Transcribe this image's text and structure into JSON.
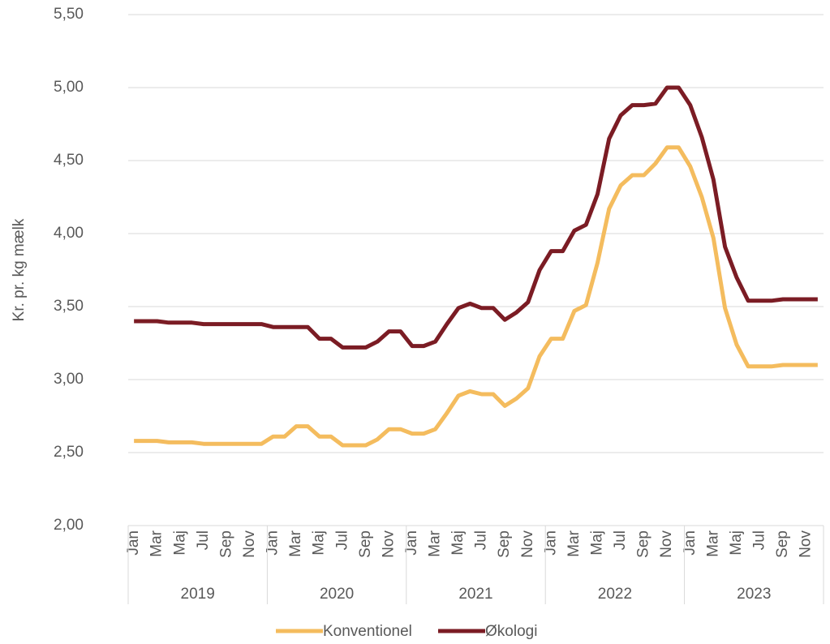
{
  "chart_data": {
    "type": "line",
    "y_label": "Kr. pr. kg mælk",
    "categories": [
      "Jan",
      null,
      "Mar",
      null,
      "Maj",
      null,
      "Jul",
      null,
      "Sep",
      null,
      "Nov",
      null,
      "Jan",
      null,
      "Mar",
      null,
      "Maj",
      null,
      "Jul",
      null,
      "Sep",
      null,
      "Nov",
      null,
      "Jan",
      null,
      "Mar",
      null,
      "Maj",
      null,
      "Jul",
      null,
      "Sep",
      null,
      "Nov",
      null,
      "Jan",
      null,
      "Mar",
      null,
      "Maj",
      null,
      "Jul",
      null,
      "Sep",
      null,
      "Nov",
      null,
      "Jan",
      null,
      "Mar",
      null,
      "Maj",
      null,
      "Jul",
      null,
      "Sep",
      null,
      "Nov",
      null
    ],
    "years": [
      "2019",
      "2020",
      "2021",
      "2022",
      "2023"
    ],
    "series": [
      {
        "name": "Konventionel",
        "color": "#f4bc5e",
        "values": [
          2.58,
          2.58,
          2.58,
          2.57,
          2.57,
          2.57,
          2.56,
          2.56,
          2.56,
          2.56,
          2.56,
          2.56,
          2.61,
          2.61,
          2.68,
          2.68,
          2.61,
          2.61,
          2.55,
          2.55,
          2.55,
          2.59,
          2.66,
          2.66,
          2.63,
          2.63,
          2.66,
          2.77,
          2.89,
          2.92,
          2.9,
          2.9,
          2.82,
          2.87,
          2.94,
          3.16,
          3.28,
          3.28,
          3.47,
          3.51,
          3.8,
          4.17,
          4.33,
          4.4,
          4.4,
          4.48,
          4.59,
          4.59,
          4.46,
          4.25,
          3.97,
          3.49,
          3.24,
          3.09,
          3.09,
          3.09,
          3.1,
          3.1,
          3.1,
          3.1
        ]
      },
      {
        "name": "Økologi",
        "color": "#7b1c24",
        "values": [
          3.4,
          3.4,
          3.4,
          3.39,
          3.39,
          3.39,
          3.38,
          3.38,
          3.38,
          3.38,
          3.38,
          3.38,
          3.36,
          3.36,
          3.36,
          3.36,
          3.28,
          3.28,
          3.22,
          3.22,
          3.22,
          3.26,
          3.33,
          3.33,
          3.23,
          3.23,
          3.26,
          3.38,
          3.49,
          3.52,
          3.49,
          3.49,
          3.41,
          3.46,
          3.53,
          3.75,
          3.88,
          3.88,
          4.02,
          4.06,
          4.27,
          4.65,
          4.81,
          4.88,
          4.88,
          4.89,
          5.0,
          5.0,
          4.88,
          4.66,
          4.37,
          3.91,
          3.7,
          3.54,
          3.54,
          3.54,
          3.55,
          3.55,
          3.55,
          3.55
        ]
      }
    ],
    "ylim": [
      2.0,
      5.5
    ],
    "yticks": [
      {
        "value": 2.0,
        "label": "2,00"
      },
      {
        "value": 2.5,
        "label": "2,50"
      },
      {
        "value": 3.0,
        "label": "3,00"
      },
      {
        "value": 3.5,
        "label": "3,50"
      },
      {
        "value": 4.0,
        "label": "4,00"
      },
      {
        "value": 4.5,
        "label": "4,50"
      },
      {
        "value": 5.0,
        "label": "5,00"
      },
      {
        "value": 5.5,
        "label": "5,50"
      }
    ],
    "grid": true,
    "legend": "bottom"
  }
}
